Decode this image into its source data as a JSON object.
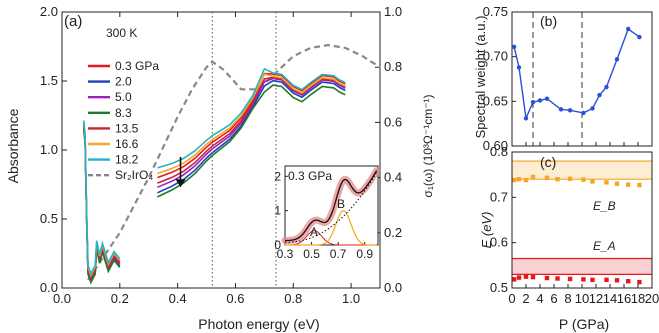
{
  "chart_data": [
    {
      "panel": "(a)",
      "type": "line",
      "annotation": "300 K",
      "xlabel": "Photon energy (eV)",
      "ylabel_left": "Absorbance",
      "ylabel_right": "σ₁(ω) (10³Ω⁻¹cm⁻¹)",
      "xlim": [
        0.0,
        1.1
      ],
      "ylim_left": [
        0.0,
        2.0
      ],
      "ylim_right": [
        0.0,
        1.0
      ],
      "xticks": [
        "0.0",
        "0.2",
        "0.4",
        "0.6",
        "0.8",
        "1.0"
      ],
      "yticks_left": [
        "0.0",
        "0.5",
        "1.0",
        "1.5",
        "2.0"
      ],
      "yticks_right": [
        "0.0",
        "0.2",
        "0.4",
        "0.6",
        "0.8",
        "1.0"
      ],
      "vlines": [
        0.52,
        0.74
      ],
      "series": [
        {
          "name": "0.3 GPa",
          "color": "#e8191c",
          "offset": 0.14,
          "peak": 1.6
        },
        {
          "name": "2.0",
          "color": "#1d3fbf",
          "offset": 0.03,
          "peak": 1.54
        },
        {
          "name": "5.0",
          "color": "#a020b8",
          "offset": 0.07,
          "peak": 1.56
        },
        {
          "name": "8.3",
          "color": "#1f7a2a",
          "offset": 0.0,
          "peak": 1.5
        },
        {
          "name": "13.5",
          "color": "#c4263e",
          "offset": 0.1,
          "peak": 1.57
        },
        {
          "name": "16.6",
          "color": "#f5a623",
          "offset": 0.17,
          "peak": 1.58
        },
        {
          "name": "18.2",
          "color": "#22b3c8",
          "offset": 0.21,
          "peak": 1.61
        },
        {
          "name": "Sr₂IrO₄",
          "color": "#888888",
          "dashed": true,
          "axis": "right",
          "x": [
            0.09,
            0.2,
            0.3,
            0.4,
            0.45,
            0.5,
            0.52,
            0.56,
            0.62,
            0.68,
            0.72,
            0.76,
            0.8,
            0.86,
            0.92,
            0.98,
            1.04,
            1.1
          ],
          "y": [
            0.03,
            0.2,
            0.4,
            0.62,
            0.72,
            0.8,
            0.82,
            0.79,
            0.72,
            0.72,
            0.76,
            0.8,
            0.84,
            0.87,
            0.88,
            0.87,
            0.84,
            0.8
          ]
        }
      ],
      "arrow_at": {
        "x": 0.41,
        "y_from": 0.95,
        "y_to": 0.73
      }
    },
    {
      "panel": "inset",
      "type": "line",
      "annotation": "0.3 GPa",
      "xticks": [
        "0.3",
        "0.5",
        "0.7",
        "0.9"
      ],
      "yticks": [
        "0",
        "1",
        "2"
      ],
      "xlim": [
        0.3,
        1.0
      ],
      "ylim": [
        0,
        2.3
      ],
      "labels": [
        "A",
        "B"
      ]
    },
    {
      "panel": "(b)",
      "type": "line",
      "xlabel": "",
      "ylabel": "Spectral weight (a.u.)",
      "xlim": [
        0,
        20
      ],
      "ylim": [
        0.6,
        0.75
      ],
      "yticks": [
        "0.60",
        "0.65",
        "0.70",
        "0.75"
      ],
      "vlines": [
        3.0,
        10.0
      ],
      "color": "#2a4fd9",
      "x": [
        0.3,
        1.0,
        2.0,
        3.0,
        4.0,
        5.0,
        7.0,
        8.3,
        10.2,
        11.5,
        12.5,
        13.5,
        15.0,
        16.6,
        18.2
      ],
      "y": [
        0.711,
        0.688,
        0.631,
        0.649,
        0.651,
        0.653,
        0.641,
        0.64,
        0.637,
        0.642,
        0.657,
        0.666,
        0.697,
        0.731,
        0.722
      ]
    },
    {
      "panel": "(c)",
      "type": "scatter",
      "xlabel": "P (GPa)",
      "ylabel": "E (eV)",
      "xlim": [
        0,
        20
      ],
      "ylim": [
        0.5,
        0.8
      ],
      "xticks": [
        "0",
        "2",
        "4",
        "6",
        "8",
        "10",
        "12",
        "14",
        "16",
        "18",
        "20"
      ],
      "yticks": [
        "0.5",
        "0.6",
        "0.7",
        "0.8"
      ],
      "series": [
        {
          "name": "E_B",
          "color": "#f5a623",
          "band": [
            0.74,
            0.78
          ],
          "x": [
            0.3,
            1.0,
            2.0,
            3.0,
            5.0,
            6.5,
            8.3,
            10.2,
            11.5,
            13.5,
            15.0,
            16.6,
            18.2
          ],
          "y": [
            0.738,
            0.74,
            0.738,
            0.745,
            0.743,
            0.74,
            0.741,
            0.739,
            0.735,
            0.733,
            0.73,
            0.728,
            0.727
          ]
        },
        {
          "name": "E_A",
          "color": "#e8191c",
          "band": [
            0.53,
            0.565
          ],
          "x": [
            0.3,
            1.0,
            2.0,
            3.0,
            5.0,
            6.5,
            8.3,
            10.2,
            11.5,
            13.5,
            15.0,
            16.6,
            18.2
          ],
          "y": [
            0.519,
            0.523,
            0.525,
            0.524,
            0.522,
            0.521,
            0.52,
            0.519,
            0.518,
            0.518,
            0.517,
            0.515,
            0.513
          ]
        }
      ]
    }
  ],
  "text": {
    "panel_a": "(a)",
    "temp": "300 K",
    "xlabel_a": "Photon energy (eV)",
    "ylabel_a": "Absorbance",
    "ylabel_a_right": "σ₁(ω) (10³Ω⁻¹cm⁻¹)",
    "inset_label": "0.3 GPa",
    "inset_A": "A",
    "inset_B": "B",
    "panel_b": "(b)",
    "ylabel_b": "Spectral weight (a.u.)",
    "panel_c": "(c)",
    "ylabel_c": "E (eV)",
    "xlabel_c": "P (GPa)",
    "label_EB": "E_B",
    "label_EA": "E_A"
  }
}
